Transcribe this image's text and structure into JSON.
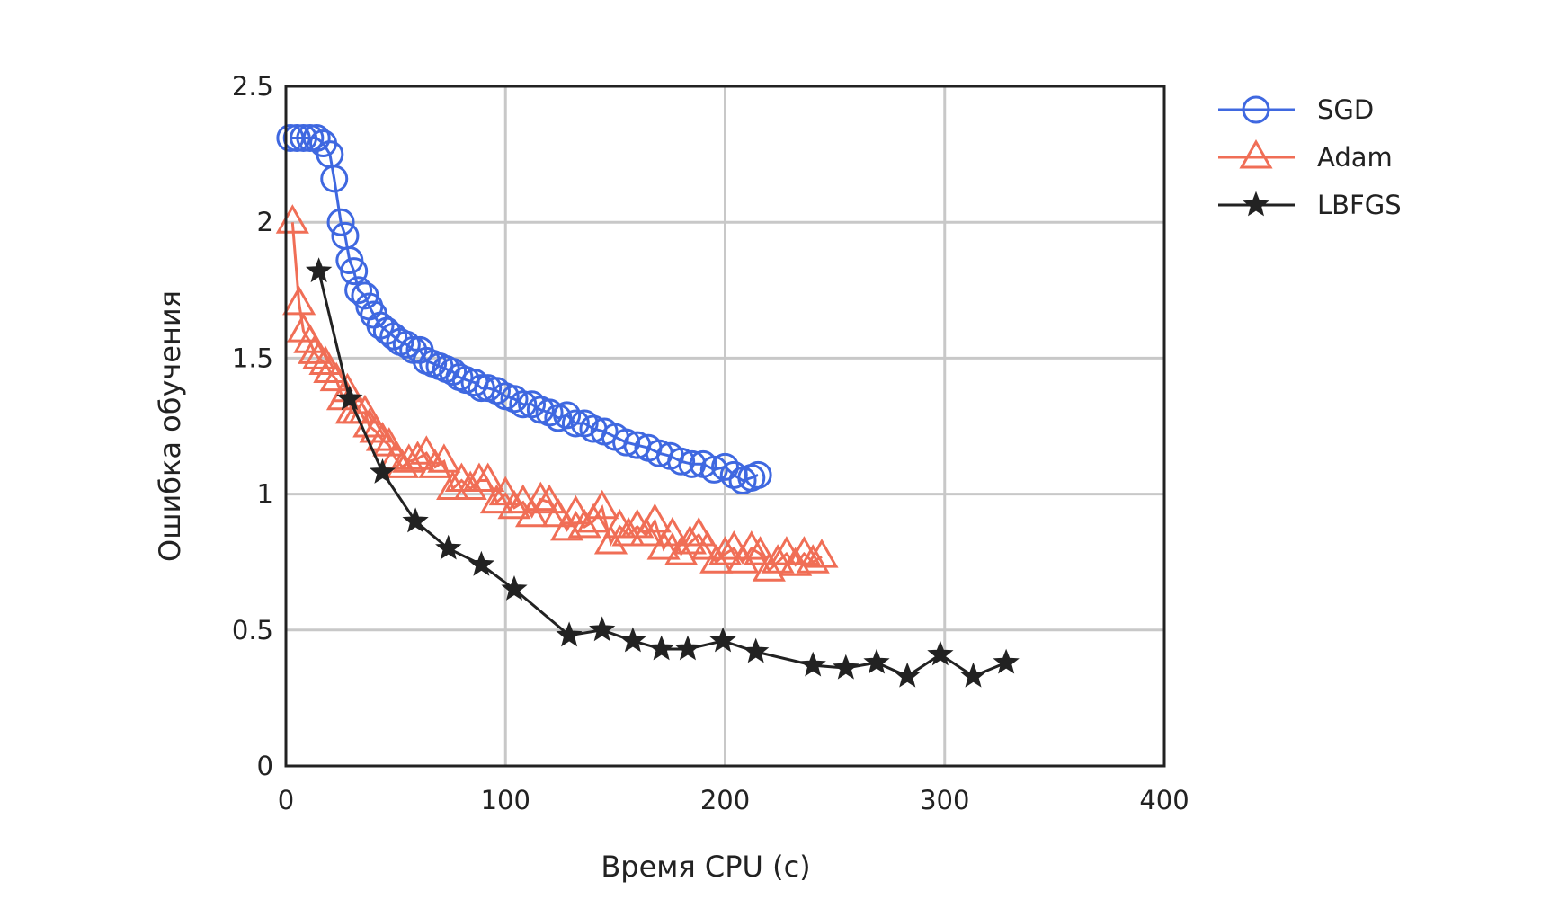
{
  "chart_data": {
    "type": "line",
    "title": "",
    "xlabel": "Время CPU (с)",
    "ylabel": "Ошибка обучения",
    "xlim": [
      0,
      400
    ],
    "ylim": [
      0,
      2.5
    ],
    "xticks": [
      "0",
      "100",
      "200",
      "300",
      "400"
    ],
    "yticks": [
      "0",
      "0.5",
      "1",
      "1.5",
      "2",
      "2.5"
    ],
    "grid": true,
    "legend_position": "outside-right-top",
    "series": [
      {
        "name": "SGD",
        "color": "#3f68e0",
        "marker": "circle",
        "x": [
          2,
          5,
          8,
          11,
          14,
          17,
          20,
          22,
          25,
          27,
          29,
          31,
          33,
          36,
          38,
          40,
          43,
          46,
          49,
          52,
          55,
          58,
          61,
          64,
          67,
          70,
          73,
          76,
          79,
          82,
          86,
          89,
          92,
          96,
          100,
          104,
          108,
          112,
          116,
          120,
          124,
          128,
          132,
          136,
          140,
          145,
          150,
          155,
          160,
          165,
          170,
          175,
          180,
          185,
          190,
          195,
          200,
          204,
          208,
          212,
          215
        ],
        "y": [
          2.31,
          2.31,
          2.31,
          2.31,
          2.31,
          2.29,
          2.25,
          2.16,
          2.0,
          1.95,
          1.86,
          1.82,
          1.75,
          1.73,
          1.69,
          1.66,
          1.62,
          1.6,
          1.58,
          1.56,
          1.55,
          1.53,
          1.53,
          1.49,
          1.48,
          1.47,
          1.46,
          1.45,
          1.43,
          1.42,
          1.41,
          1.39,
          1.39,
          1.38,
          1.36,
          1.35,
          1.33,
          1.33,
          1.31,
          1.3,
          1.28,
          1.29,
          1.26,
          1.26,
          1.24,
          1.23,
          1.21,
          1.19,
          1.18,
          1.17,
          1.15,
          1.14,
          1.12,
          1.11,
          1.11,
          1.09,
          1.1,
          1.07,
          1.05,
          1.06,
          1.07
        ]
      },
      {
        "name": "Adam",
        "color": "#f06e56",
        "marker": "triangle",
        "x": [
          3,
          6,
          8,
          11,
          13,
          15,
          18,
          20,
          23,
          26,
          28,
          30,
          33,
          36,
          38,
          41,
          44,
          47,
          50,
          53,
          56,
          60,
          64,
          68,
          72,
          76,
          80,
          84,
          88,
          92,
          96,
          100,
          104,
          108,
          112,
          116,
          120,
          124,
          128,
          132,
          136,
          140,
          144,
          148,
          152,
          156,
          160,
          164,
          168,
          172,
          176,
          180,
          184,
          188,
          192,
          196,
          200,
          204,
          208,
          212,
          216,
          220,
          224,
          228,
          232,
          236,
          240,
          244
        ],
        "y": [
          2.0,
          1.7,
          1.6,
          1.56,
          1.52,
          1.5,
          1.48,
          1.45,
          1.42,
          1.35,
          1.38,
          1.3,
          1.3,
          1.3,
          1.25,
          1.23,
          1.2,
          1.18,
          1.13,
          1.1,
          1.12,
          1.13,
          1.15,
          1.1,
          1.12,
          1.02,
          1.05,
          1.02,
          1.05,
          1.05,
          0.97,
          1.0,
          0.95,
          0.97,
          0.92,
          0.98,
          0.97,
          0.92,
          0.87,
          0.93,
          0.88,
          0.9,
          0.95,
          0.82,
          0.88,
          0.85,
          0.88,
          0.85,
          0.9,
          0.8,
          0.85,
          0.78,
          0.82,
          0.85,
          0.8,
          0.75,
          0.78,
          0.8,
          0.75,
          0.8,
          0.78,
          0.72,
          0.75,
          0.78,
          0.74,
          0.78,
          0.75,
          0.77
        ]
      },
      {
        "name": "LBFGS",
        "color": "#222222",
        "marker": "star",
        "x": [
          15,
          29,
          44,
          59,
          74,
          89,
          104,
          129,
          144,
          158,
          171,
          183,
          199,
          214,
          240,
          255,
          269,
          283,
          298,
          313,
          328
        ],
        "y": [
          1.82,
          1.35,
          1.08,
          0.9,
          0.8,
          0.74,
          0.65,
          0.48,
          0.5,
          0.46,
          0.43,
          0.43,
          0.46,
          0.42,
          0.37,
          0.36,
          0.38,
          0.33,
          0.41,
          0.33,
          0.38
        ]
      }
    ]
  }
}
